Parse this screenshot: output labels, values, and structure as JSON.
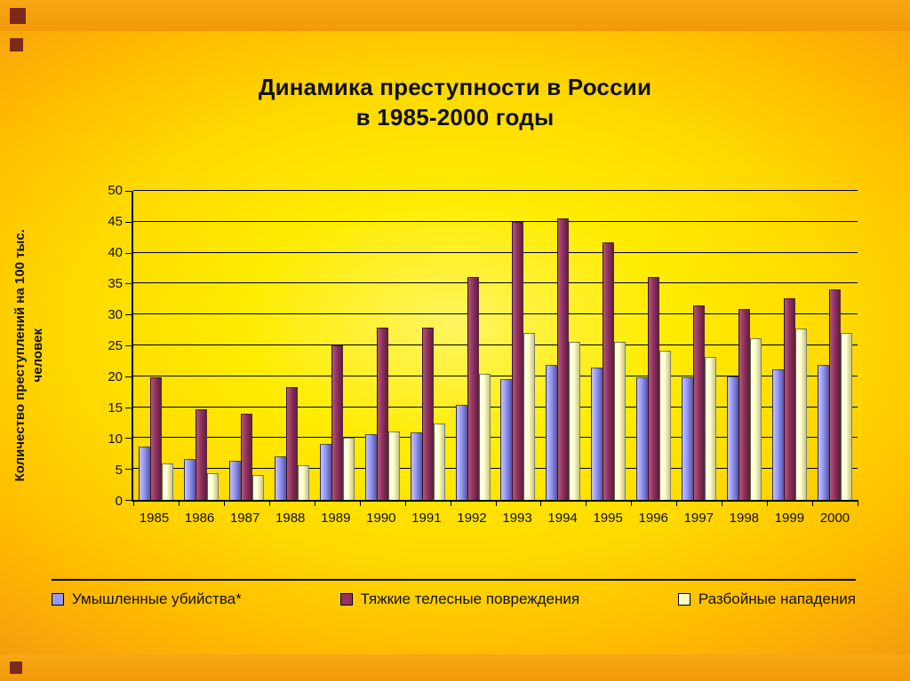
{
  "slide": {
    "title": {
      "line1": "Динамика преступности в России",
      "line2": "в 1985-2000 годы"
    }
  },
  "chart_data": {
    "type": "bar",
    "title": "Динамика преступности в России в 1985-2000 годы",
    "ylabel": "Количество преступлений на 100 тыс. человек",
    "ylabel_line1": "Количество преступлений  на 100 тыс.",
    "ylabel_line2": "человек",
    "xlabel": "",
    "ylim": [
      0,
      50
    ],
    "yticks": [
      0,
      5,
      10,
      15,
      20,
      25,
      30,
      35,
      40,
      45,
      50
    ],
    "grid": true,
    "legend_position": "bottom",
    "categories": [
      "1985",
      "1986",
      "1987",
      "1988",
      "1989",
      "1990",
      "1991",
      "1992",
      "1993",
      "1994",
      "1995",
      "1996",
      "1997",
      "1998",
      "1999",
      "2000"
    ],
    "series": [
      {
        "name": "Умышленные убийства*",
        "colors": {
          "light": "#C3C3FF",
          "base": "#9999F0",
          "dark": "#5C5CBC"
        },
        "values": [
          8.6,
          6.6,
          6.3,
          7.1,
          9.1,
          10.6,
          10.9,
          15.4,
          19.6,
          21.8,
          21.4,
          19.9,
          19.8,
          20.0,
          21.1,
          21.9
        ]
      },
      {
        "name": "Тяжкие телесные повреждения",
        "colors": {
          "light": "#B25980",
          "base": "#93325F",
          "dark": "#5E1F3C"
        },
        "values": [
          19.9,
          14.7,
          13.9,
          18.3,
          25.0,
          27.9,
          27.9,
          36.1,
          45.0,
          45.5,
          41.6,
          36.1,
          31.4,
          30.9,
          32.6,
          34.1
        ]
      },
      {
        "name": "Разбойные нападения",
        "colors": {
          "light": "#FFFFF0",
          "base": "#FFFFC8",
          "dark": "#C6C687"
        },
        "values": [
          5.9,
          4.3,
          4.0,
          5.6,
          10.0,
          11.1,
          12.4,
          20.4,
          27.0,
          25.6,
          25.6,
          24.1,
          23.1,
          26.1,
          27.7,
          27.0
        ]
      }
    ]
  }
}
